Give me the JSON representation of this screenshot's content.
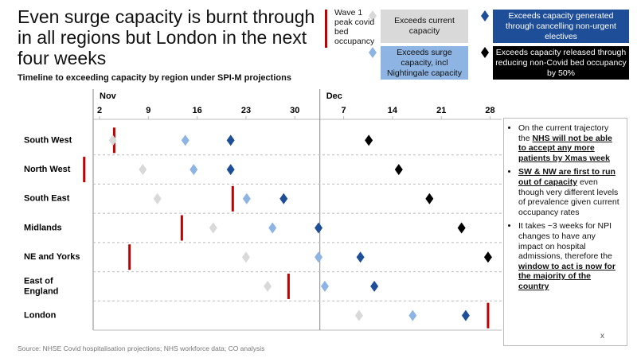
{
  "chart_data": {
    "type": "timeline",
    "title": "Even surge capacity is burnt through in all regions but London in the next four weeks",
    "subtitle": "Timeline to exceeding capacity by region under SPI-M projections",
    "categories": [
      "South West",
      "North West",
      "South East",
      "Midlands",
      "NE and Yorks",
      "East of England",
      "London"
    ],
    "xlim": [
      1,
      60
    ],
    "month_labels": [
      {
        "value": 2,
        "label": "Nov"
      },
      {
        "value": 34.5,
        "label": "Dec"
      }
    ],
    "xticks": [
      2,
      9,
      16,
      23,
      30,
      {
        "value": 37,
        "label": "7"
      },
      {
        "value": 44,
        "label": "14"
      },
      {
        "value": 51,
        "label": "21"
      },
      {
        "value": 58,
        "label": "28"
      }
    ],
    "series": [
      {
        "name": "Wave 1 peak covid bed occupancy",
        "color": "#c00000",
        "marker": "bar",
        "values": [
          4.1,
          -0.2,
          21.1,
          13.8,
          6.3,
          29.1,
          57.7
        ]
      },
      {
        "name": "Exceeds current capacity",
        "color": "#d9d9d9",
        "marker": "diamond",
        "values": [
          3.9,
          8.2,
          10.3,
          18.3,
          23.0,
          26.1,
          39.2
        ]
      },
      {
        "name": "Exceeds surge capacity, incl Nightingale capacity",
        "color": "#8db4e2",
        "marker": "diamond",
        "values": [
          14.3,
          15.5,
          23.1,
          26.8,
          33.4,
          34.3,
          46.9
        ]
      },
      {
        "name": "Exceeds capacity generated through cancelling non-urgent electives",
        "color": "#1f4e99",
        "marker": "diamond",
        "values": [
          20.8,
          20.8,
          28.4,
          33.4,
          39.4,
          41.4,
          54.5
        ]
      },
      {
        "name": "Exceeds capacity released through reducing non-Covid bed occupancy by 50%",
        "color": "#000000",
        "marker": "diamond",
        "values": [
          40.6,
          44.9,
          49.3,
          53.9,
          57.7,
          null,
          null
        ]
      }
    ],
    "notes": [
      {
        "runs": [
          {
            "text": "On the current trajectory the "
          },
          {
            "text": "NHS will not be able to accept any more patients by Xmas week",
            "strong": true
          }
        ]
      },
      {
        "runs": [
          {
            "text": "SW & NW are first to run out of capacity",
            "strong": true
          },
          {
            "text": " even though very different levels of prevalence given current occupancy rates"
          }
        ]
      },
      {
        "runs": [
          {
            "text": "It takes ~3 weeks for NPI changes to have any impact on hospital admissions, therefore the "
          },
          {
            "text": "window to act is now for the majority of the country",
            "strong": true
          }
        ]
      }
    ],
    "close_mark": "x",
    "source": "Source: NHSE Covid hospitalisation projections; NHS workforce data; CO analysis"
  }
}
